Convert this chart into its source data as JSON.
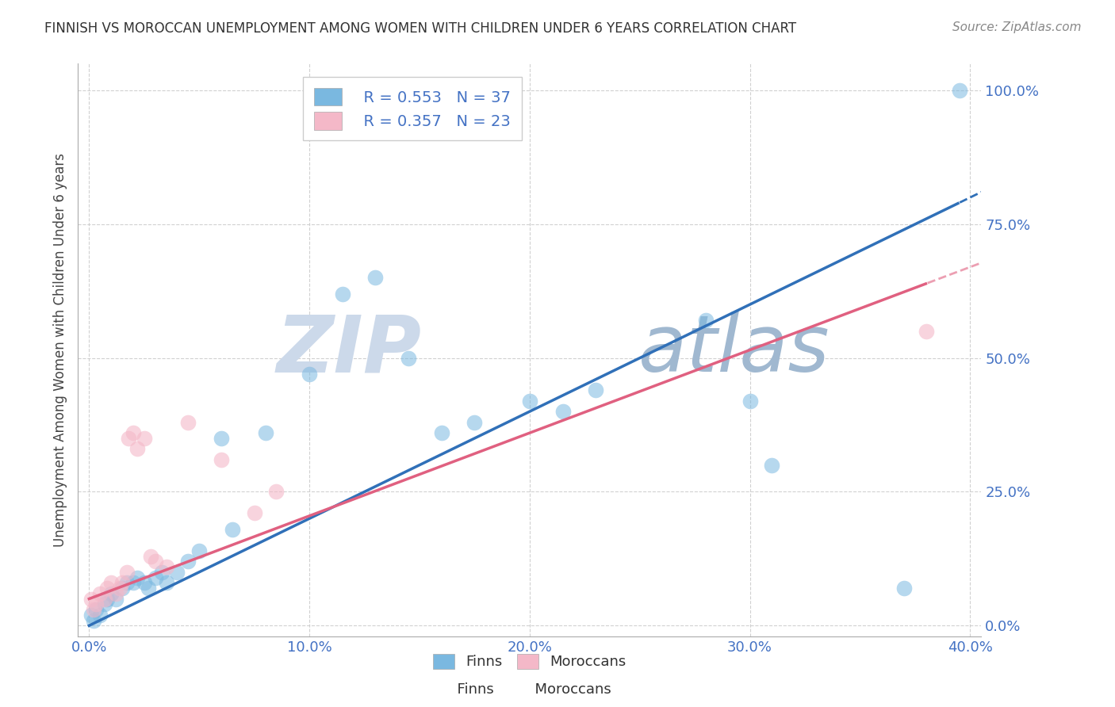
{
  "title": "FINNISH VS MOROCCAN UNEMPLOYMENT AMONG WOMEN WITH CHILDREN UNDER 6 YEARS CORRELATION CHART",
  "source": "Source: ZipAtlas.com",
  "ylabel": "Unemployment Among Women with Children Under 6 years",
  "xlabel_ticks": [
    "0.0%",
    "10.0%",
    "20.0%",
    "30.0%",
    "40.0%"
  ],
  "ylabel_ticks": [
    "0.0%",
    "25.0%",
    "50.0%",
    "75.0%",
    "100.0%"
  ],
  "xlim": [
    -0.005,
    0.405
  ],
  "ylim": [
    -0.02,
    1.05
  ],
  "finns_x": [
    0.001,
    0.002,
    0.003,
    0.005,
    0.007,
    0.008,
    0.01,
    0.012,
    0.015,
    0.017,
    0.02,
    0.022,
    0.025,
    0.027,
    0.03,
    0.033,
    0.035,
    0.04,
    0.045,
    0.05,
    0.06,
    0.065,
    0.08,
    0.1,
    0.115,
    0.13,
    0.145,
    0.16,
    0.175,
    0.2,
    0.215,
    0.23,
    0.28,
    0.3,
    0.31,
    0.37,
    0.395
  ],
  "finns_y": [
    0.02,
    0.01,
    0.03,
    0.02,
    0.04,
    0.05,
    0.06,
    0.05,
    0.07,
    0.08,
    0.08,
    0.09,
    0.08,
    0.07,
    0.09,
    0.1,
    0.08,
    0.1,
    0.12,
    0.14,
    0.35,
    0.18,
    0.36,
    0.47,
    0.62,
    0.65,
    0.5,
    0.36,
    0.38,
    0.42,
    0.4,
    0.44,
    0.57,
    0.42,
    0.3,
    0.07,
    1.0
  ],
  "moroccans_x": [
    0.001,
    0.002,
    0.003,
    0.005,
    0.007,
    0.008,
    0.01,
    0.012,
    0.014,
    0.015,
    0.017,
    0.018,
    0.02,
    0.022,
    0.025,
    0.028,
    0.03,
    0.035,
    0.045,
    0.06,
    0.075,
    0.085,
    0.38
  ],
  "moroccans_y": [
    0.05,
    0.03,
    0.04,
    0.06,
    0.05,
    0.07,
    0.08,
    0.06,
    0.07,
    0.08,
    0.1,
    0.35,
    0.36,
    0.33,
    0.35,
    0.13,
    0.12,
    0.11,
    0.38,
    0.31,
    0.21,
    0.25,
    0.55
  ],
  "finns_R": 0.553,
  "finns_N": 37,
  "moroccans_R": 0.357,
  "moroccans_N": 23,
  "finn_color": "#7ab8e0",
  "finn_line_color": "#3070b8",
  "moroccan_color": "#f4b8c8",
  "moroccan_line_color": "#e06080",
  "background_color": "#ffffff",
  "grid_color": "#cccccc",
  "title_color": "#333333",
  "axis_label_color": "#4472c4",
  "watermark_color": "#ccd9ea"
}
